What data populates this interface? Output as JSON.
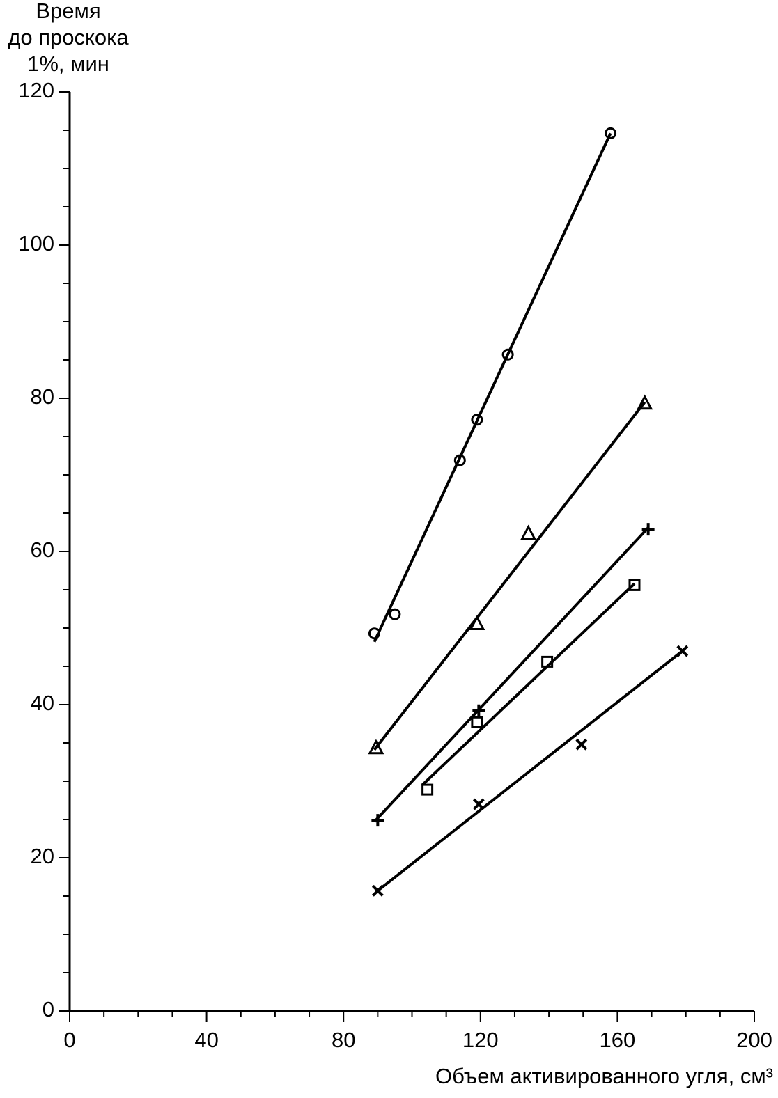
{
  "chart_data": {
    "type": "scatter",
    "ylabel": [
      "Время",
      "до проскока",
      "1%, мин"
    ],
    "xlabel": "Объем активированного угля, см³",
    "xlim": [
      0,
      200
    ],
    "xticks": [
      0,
      40,
      80,
      120,
      160,
      200
    ],
    "xminorticks": [
      10,
      20,
      30,
      50,
      60,
      70,
      90,
      100,
      110,
      130,
      140,
      150,
      170,
      180,
      190
    ],
    "ylim": [
      0,
      120
    ],
    "yticks": [
      0,
      20,
      40,
      60,
      80,
      100,
      120
    ],
    "yminorticks": [
      5,
      10,
      15,
      25,
      30,
      35,
      45,
      50,
      55,
      65,
      70,
      75,
      85,
      90,
      95,
      105,
      110,
      115
    ],
    "color": "#000000",
    "series": [
      {
        "marker": "circle",
        "x": [
          89,
          95,
          114,
          119,
          128,
          158
        ],
        "values": [
          49.3,
          51.8,
          71.9,
          77.2,
          85.7,
          114.6
        ],
        "line_x": [
          89,
          158
        ],
        "line_y": [
          48.2,
          114.6
        ]
      },
      {
        "marker": "triangle",
        "x": [
          89.5,
          119,
          134,
          168
        ],
        "values": [
          34.3,
          50.5,
          62.3,
          79.3
        ],
        "line_x": [
          89,
          168
        ],
        "line_y": [
          34.1,
          79.5
        ]
      },
      {
        "marker": "plus",
        "x": [
          90,
          119.5,
          169
        ],
        "values": [
          24.9,
          39.2,
          62.9
        ],
        "line_x": [
          89,
          169
        ],
        "line_y": [
          24.7,
          63.1
        ]
      },
      {
        "marker": "square",
        "x": [
          104.5,
          119,
          139.5,
          165
        ],
        "values": [
          28.9,
          37.7,
          45.6,
          55.6
        ],
        "line_x": [
          103,
          165
        ],
        "line_y": [
          29.5,
          55.8
        ]
      },
      {
        "marker": "cross",
        "x": [
          90,
          119.5,
          149.5,
          179
        ],
        "values": [
          15.7,
          27,
          34.8,
          47
        ],
        "line_x": [
          90,
          179
        ],
        "line_y": [
          15.7,
          47
        ]
      }
    ]
  }
}
